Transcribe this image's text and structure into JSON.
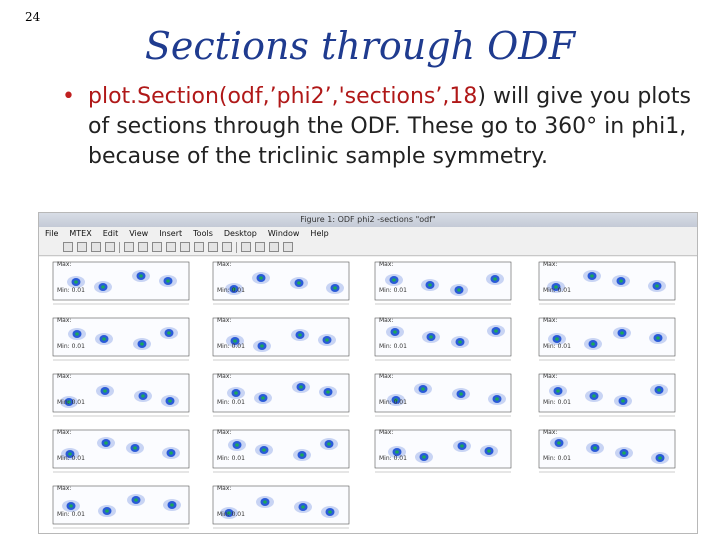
{
  "slide": {
    "number": "24",
    "title": "Sections through ODF",
    "bullet_code": "plot.Section(odf,’phi2’,'sections’,18",
    "bullet_rest": ") will give you plots of sections through the ODF.  These go to 360° in phi1, because of the triclinic sample symmetry."
  },
  "figure": {
    "title": "Figure 1: ODF phi2 -sections \"odf\"",
    "menu": [
      "File",
      "MTEX",
      "Edit",
      "View",
      "Insert",
      "Tools",
      "Desktop",
      "Window",
      "Help"
    ],
    "toolbar_icons": [
      "new-icon",
      "open-icon",
      "save-icon",
      "print-icon",
      "pointer-icon",
      "zoom-in-icon",
      "zoom-out-icon",
      "pan-icon",
      "rotate-icon",
      "data-cursor-icon",
      "brush-icon",
      "link-icon",
      "colorbar-icon",
      "legend-icon",
      "hide-tools-icon",
      "show-tools-icon"
    ],
    "panel_labels": {
      "max": "Max:",
      "min": "Min:",
      "min_value": "0.01"
    }
  }
}
